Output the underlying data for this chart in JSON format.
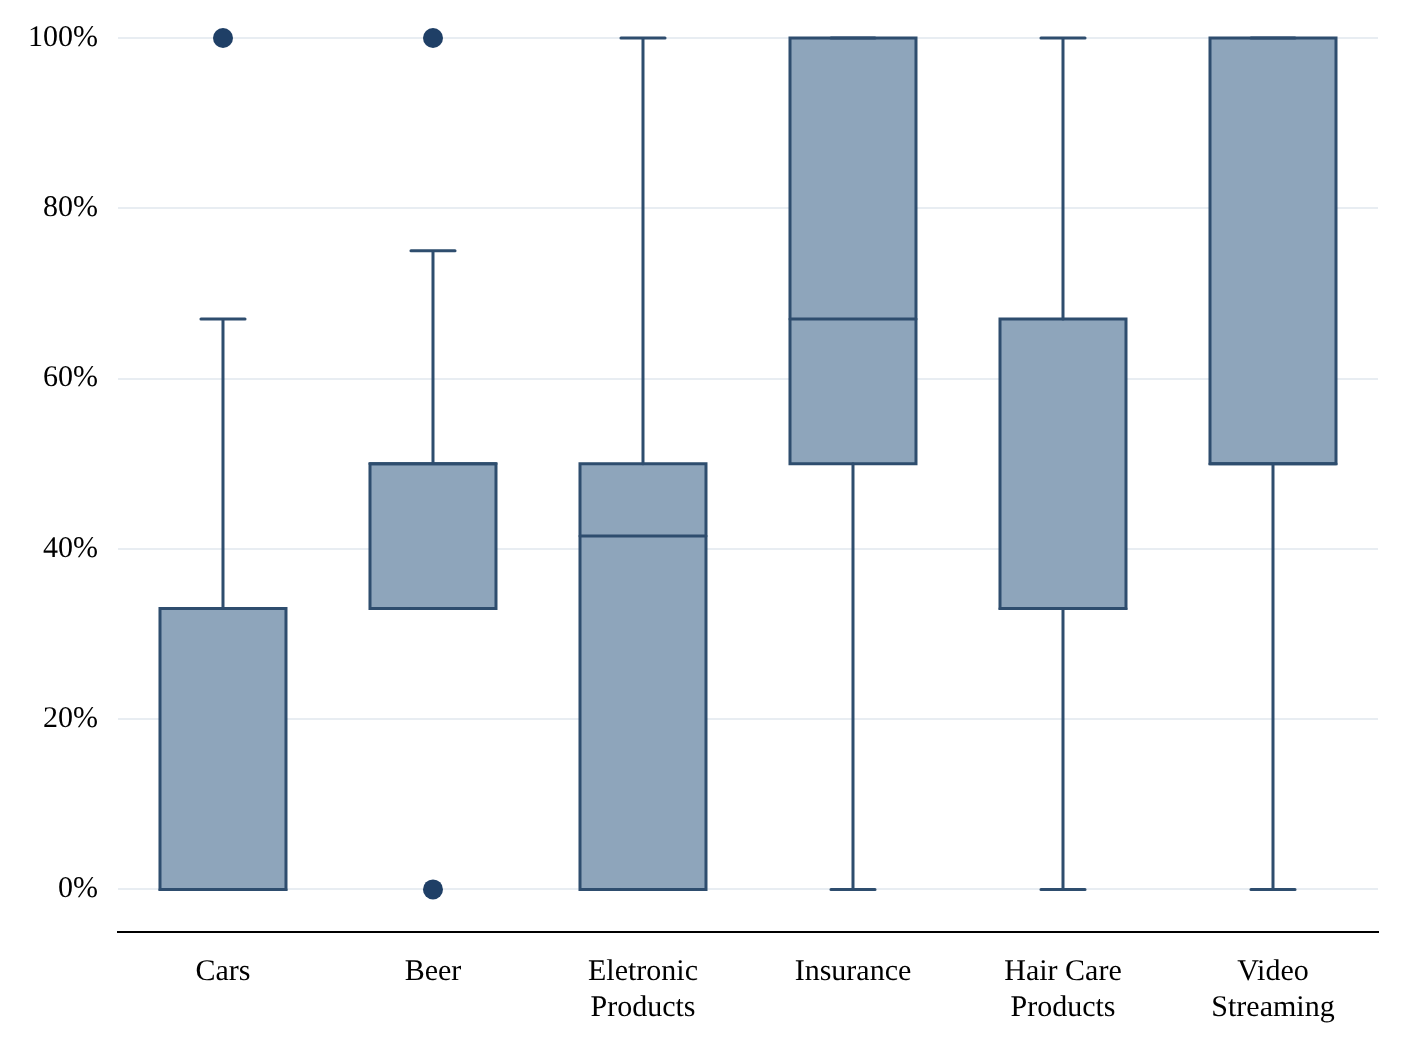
{
  "chart_data": {
    "type": "box",
    "categories": [
      "Cars",
      "Beer",
      "Eletronic Products",
      "Insurance",
      "Hair Care Products",
      "Video Streaming"
    ],
    "series": [
      {
        "color": "#8ea5bb",
        "boxes": [
          {
            "low": 0,
            "q1": 0,
            "median": 0,
            "q3": 33,
            "high": 67,
            "outliers": [
              100
            ]
          },
          {
            "low": 33,
            "q1": 33,
            "median": 50,
            "q3": 50,
            "high": 75,
            "outliers": [
              0,
              100
            ]
          },
          {
            "low": 0,
            "q1": 0,
            "median": 41.5,
            "q3": 50,
            "high": 100
          },
          {
            "low": 0,
            "q1": 50,
            "median": 67,
            "q3": 100,
            "high": 100
          },
          {
            "low": 0,
            "q1": 33,
            "median": 33,
            "q3": 67,
            "high": 100
          },
          {
            "low": 0,
            "q1": 50,
            "median": 50,
            "q3": 100,
            "high": 100
          }
        ]
      }
    ],
    "ylim": [
      -5,
      100
    ],
    "yticks": [
      {
        "value": 0,
        "label": "0%"
      },
      {
        "value": 20,
        "label": "20%"
      },
      {
        "value": 40,
        "label": "40%"
      },
      {
        "value": 60,
        "label": "60%"
      },
      {
        "value": 80,
        "label": "80%"
      },
      {
        "value": 100,
        "label": "100%"
      }
    ],
    "grid": "y",
    "legend": false
  }
}
